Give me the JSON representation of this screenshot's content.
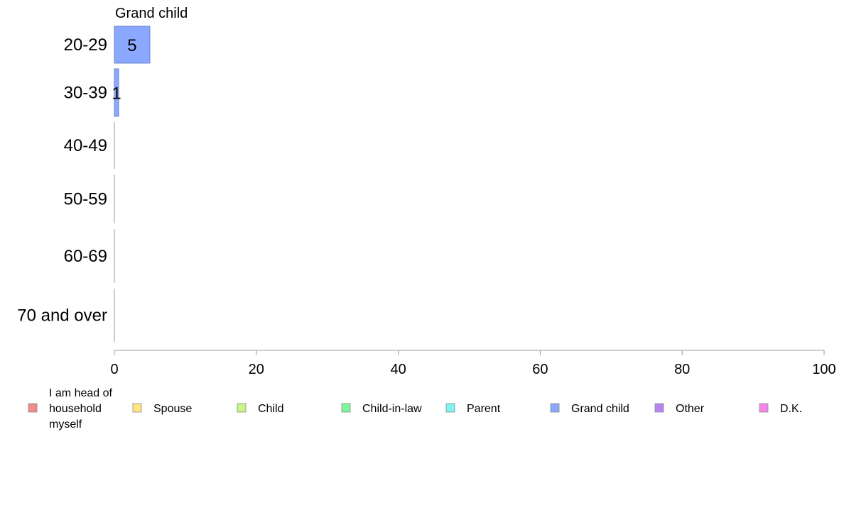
{
  "chart_data": {
    "type": "bar",
    "orientation": "horizontal",
    "stacked": true,
    "panel_title": "Grand child",
    "categories": [
      "20-29",
      "30-39",
      "40-49",
      "50-59",
      "60-69",
      "70 and over"
    ],
    "series": [
      {
        "name": "I am head of household myself",
        "color": "#f28b8b",
        "values": [
          0,
          0,
          0,
          0,
          0,
          0
        ]
      },
      {
        "name": "Spouse",
        "color": "#ffe57f",
        "values": [
          0,
          0,
          0,
          0,
          0,
          0
        ]
      },
      {
        "name": "Child",
        "color": "#c8f584",
        "values": [
          0,
          0,
          0,
          0,
          0,
          0
        ]
      },
      {
        "name": "Child-in-law",
        "color": "#7ff59c",
        "values": [
          0,
          0,
          0,
          0,
          0,
          0
        ]
      },
      {
        "name": "Parent",
        "color": "#7ff5f0",
        "values": [
          0,
          0,
          0,
          0,
          0,
          0
        ]
      },
      {
        "name": "Grand child",
        "color": "#8aa8ff",
        "values": [
          5,
          0.6,
          0,
          0,
          0,
          0
        ]
      },
      {
        "name": "Other",
        "color": "#b985f5",
        "values": [
          0,
          0,
          0,
          0,
          0,
          0
        ]
      },
      {
        "name": "D.K.",
        "color": "#f585e8",
        "values": [
          0,
          0,
          0,
          0,
          0,
          0
        ]
      }
    ],
    "data_labels": [
      {
        "category": "20-29",
        "series": "Grand child",
        "text": "5"
      },
      {
        "category": "30-39",
        "series": "Grand child",
        "text": "1"
      }
    ],
    "xlim": [
      0,
      100
    ],
    "xticks": [
      0,
      20,
      40,
      60,
      80,
      100
    ],
    "xlabel": "",
    "ylabel": "",
    "grid": false,
    "legend_position": "bottom",
    "legend_lines": [
      [
        "I am head of",
        "household",
        "myself"
      ],
      [
        "Spouse"
      ],
      [
        "Child"
      ],
      [
        "Child-in-law"
      ],
      [
        "Parent"
      ],
      [
        "Grand child"
      ],
      [
        "Other"
      ],
      [
        "D.K."
      ]
    ]
  }
}
